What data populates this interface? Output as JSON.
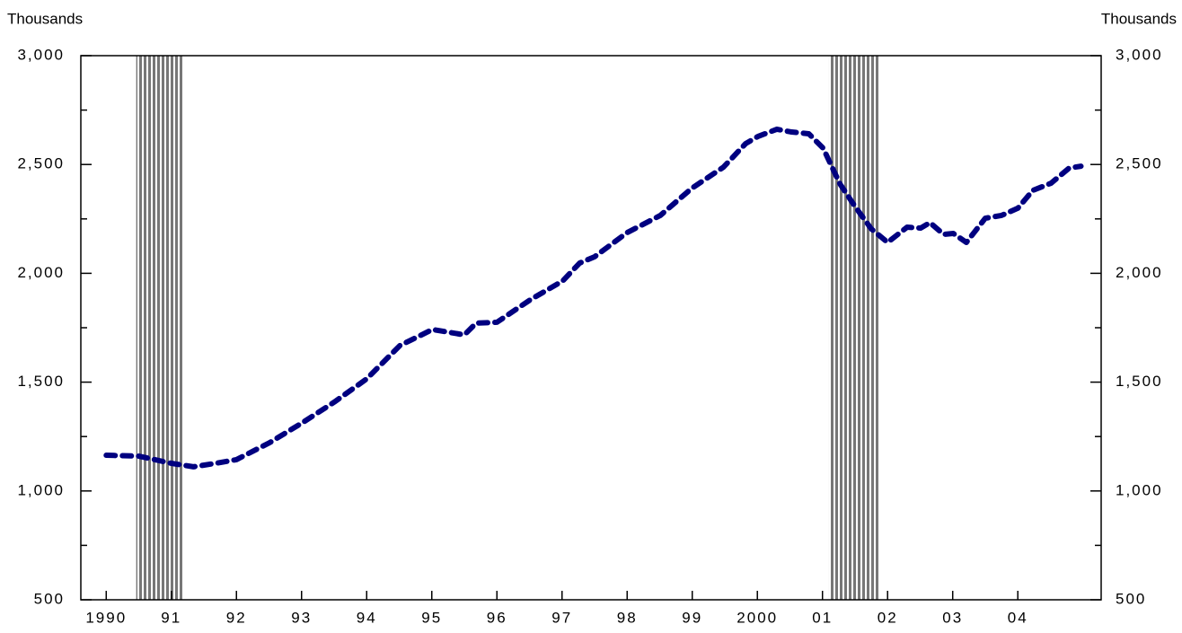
{
  "chart_data": {
    "type": "line",
    "ylabel": "Thousands",
    "y2label": "Thousands",
    "x": [
      1990.0,
      1990.5,
      1991.0,
      1991.34,
      1991.68,
      1992.0,
      1992.51,
      1993.01,
      1993.5,
      1994.0,
      1994.51,
      1995.01,
      1995.5,
      1995.68,
      1996.0,
      1996.51,
      1997.01,
      1997.27,
      1997.5,
      1998.0,
      1998.51,
      1998.99,
      1999.48,
      1999.82,
      2000.01,
      2000.3,
      2000.51,
      2000.79,
      2001.01,
      2001.27,
      2001.5,
      2001.75,
      2002.0,
      2002.3,
      2002.51,
      2002.65,
      2002.86,
      2003.01,
      2003.21,
      2003.5,
      2003.75,
      2004.0,
      2004.23,
      2004.51,
      2004.79,
      2004.97
    ],
    "values": [
      1164,
      1160,
      1127,
      1111,
      1127,
      1144,
      1222,
      1313,
      1408,
      1515,
      1668,
      1742,
      1717,
      1771,
      1775,
      1878,
      1965,
      2047,
      2076,
      2187,
      2266,
      2390,
      2488,
      2596,
      2629,
      2662,
      2650,
      2641,
      2575,
      2410,
      2307,
      2204,
      2142,
      2212,
      2208,
      2233,
      2179,
      2183,
      2142,
      2253,
      2266,
      2299,
      2381,
      2414,
      2484,
      2492
    ],
    "color": "#000080",
    "recessions": [
      [
        1990.46,
        1991.19
      ],
      [
        2001.1,
        2001.87
      ]
    ],
    "xlim": [
      1989.61,
      2005.28
    ],
    "xticks": [
      1990,
      {
        "value": 1991,
        "label": "91"
      },
      {
        "value": 1992,
        "label": "92"
      },
      {
        "value": 1993,
        "label": "93"
      },
      {
        "value": 1994,
        "label": "94"
      },
      {
        "value": 1995,
        "label": "95"
      },
      {
        "value": 1996,
        "label": "96"
      },
      {
        "value": 1997,
        "label": "97"
      },
      {
        "value": 1998,
        "label": "98"
      },
      {
        "value": 1999,
        "label": "99"
      },
      2000,
      {
        "value": 2001,
        "label": "01"
      },
      {
        "value": 2002,
        "label": "02"
      },
      {
        "value": 2003,
        "label": "03"
      },
      {
        "value": 2004,
        "label": "04"
      }
    ],
    "ylim": [
      500,
      3000
    ],
    "yticks": [
      500,
      {
        "value": 1000,
        "label": "1,000"
      },
      {
        "value": 1500,
        "label": "1,500"
      },
      {
        "value": 2000,
        "label": "2,000"
      },
      {
        "value": 2500,
        "label": "2,500"
      },
      {
        "value": 3000,
        "label": "3,000"
      }
    ],
    "yminorticks": [
      750,
      1250,
      1750,
      2250,
      2750
    ]
  }
}
